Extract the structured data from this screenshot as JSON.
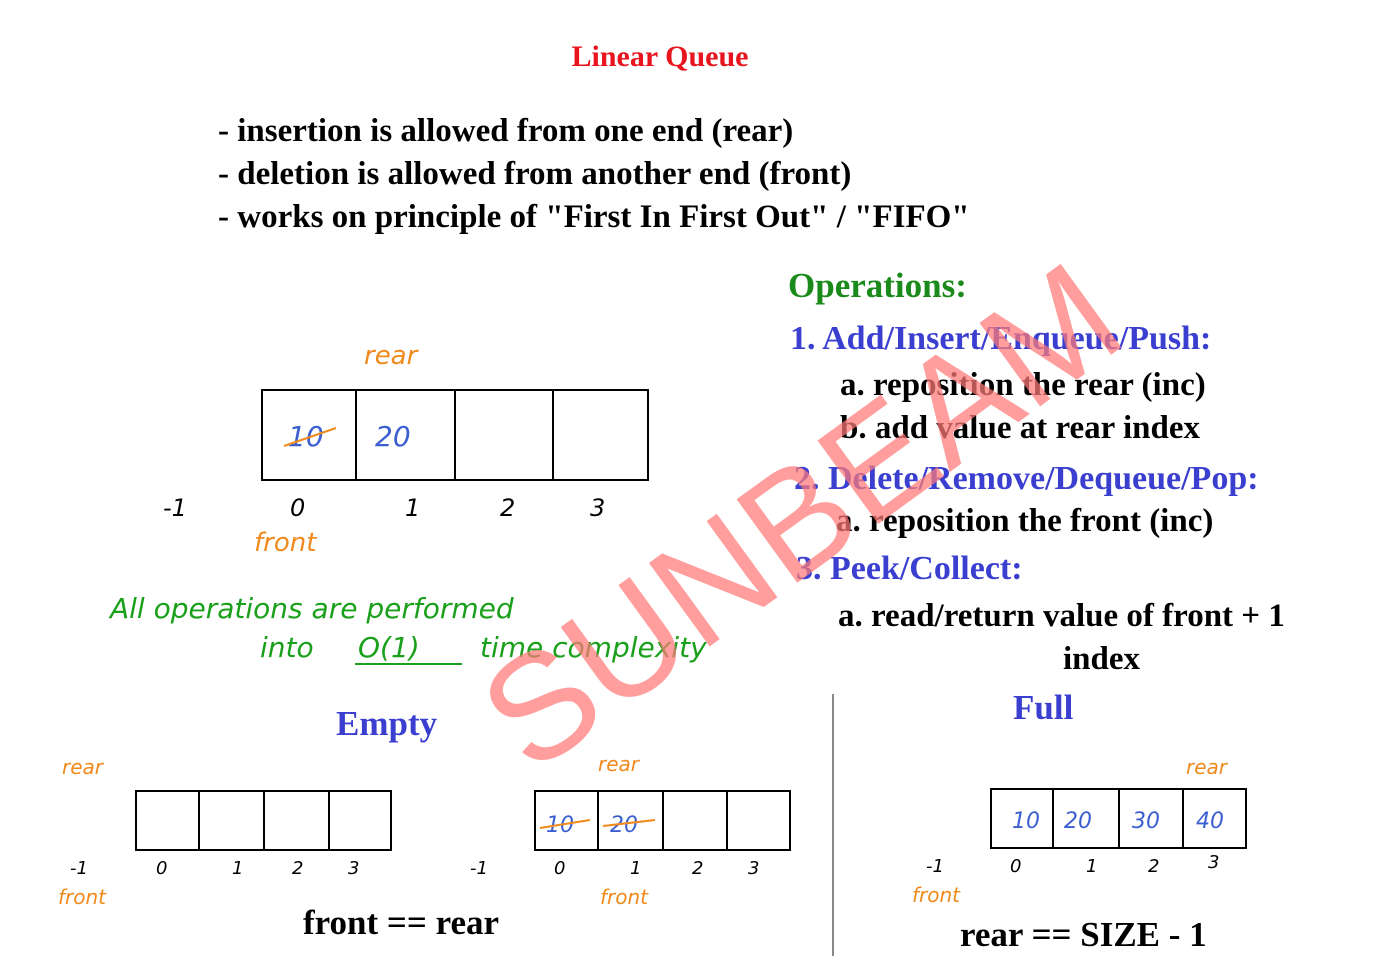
{
  "title": "Linear Queue",
  "bullets": [
    "- insertion is allowed from one end (rear)",
    "- deletion is allowed from another end (front)",
    "- works on principle of \"First In First Out\" / \"FIFO\""
  ],
  "operations": {
    "heading": "Operations:",
    "push": {
      "label": "1. Add/Insert/Enqueue/Push:",
      "steps": [
        "a. reposition the rear (inc)",
        "b. add value at rear index"
      ]
    },
    "pop": {
      "label": "2. Delete/Remove/Dequeue/Pop:",
      "steps": [
        "a. reposition the front (inc)"
      ]
    },
    "peek": {
      "label": "3. Peek/Collect:",
      "steps": [
        "a. read/return value of front + 1",
        "index"
      ]
    }
  },
  "main_diagram": {
    "rear_label": "rear",
    "front_label": "front",
    "cells": [
      "10",
      "20",
      "",
      ""
    ],
    "indices": [
      "-1",
      "0",
      "1",
      "2",
      "3"
    ]
  },
  "note": {
    "line1": "All operations are performed",
    "line2_pre": "into",
    "complexity": "O(1)",
    "line2_post": "time complexity"
  },
  "empty": {
    "heading": "Empty",
    "condition": "front == rear",
    "diagram_a": {
      "rear_label": "rear",
      "front_label": "front",
      "cells": [
        "",
        "",
        "",
        ""
      ],
      "indices": [
        "-1",
        "0",
        "1",
        "2",
        "3"
      ]
    },
    "diagram_b": {
      "rear_label": "rear",
      "front_label": "front",
      "cells": [
        "10",
        "20",
        "",
        ""
      ],
      "indices": [
        "-1",
        "0",
        "1",
        "2",
        "3"
      ]
    }
  },
  "full": {
    "heading": "Full",
    "condition": "rear == SIZE - 1",
    "diagram": {
      "rear_label": "rear",
      "front_label": "front",
      "cells": [
        "10",
        "20",
        "30",
        "40"
      ],
      "indices": [
        "-1",
        "0",
        "1",
        "2",
        "3"
      ]
    }
  },
  "watermark": "SUNBEAM",
  "colors": {
    "title": "#e8141e",
    "operations_heading": "#1a8a1a",
    "operation_label": "#3b3fd0",
    "handwriting_orange": "#f08a1c",
    "handwriting_blue": "#3b5fd0",
    "handwriting_green": "#1aa01a",
    "watermark": "#ff7a78"
  }
}
